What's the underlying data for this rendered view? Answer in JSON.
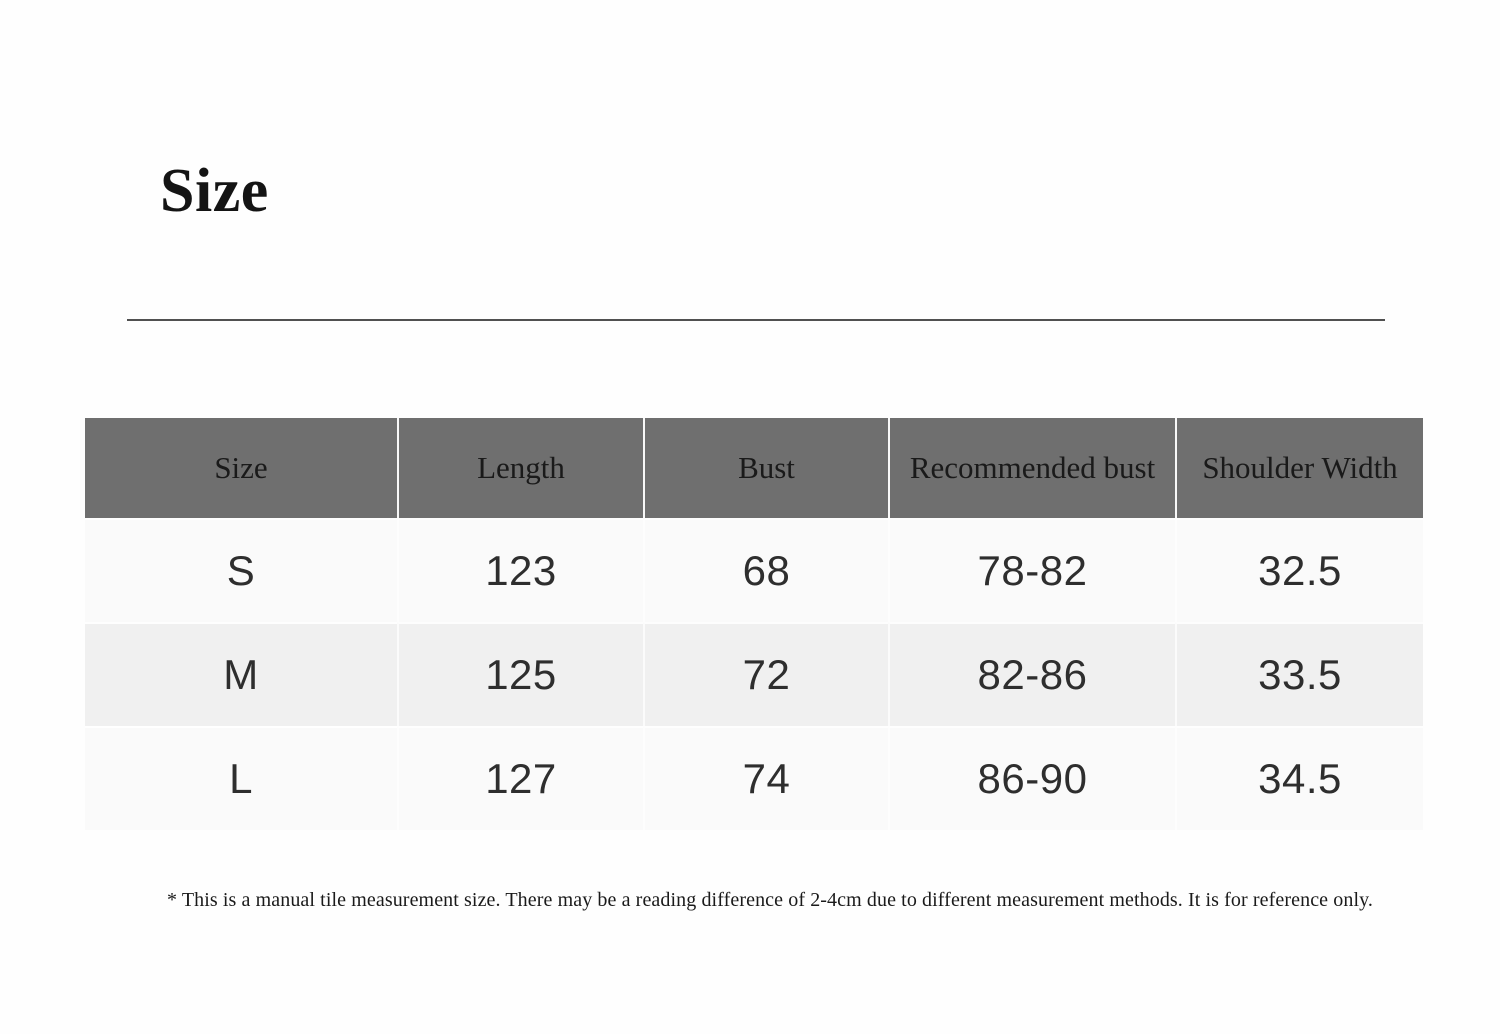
{
  "page": {
    "title": "Size",
    "footnote": "* This is a manual tile measurement size. There may be a reading difference of 2-4cm due to different measurement methods. It is for reference only."
  },
  "size_table": {
    "columns": [
      "Size",
      "Length",
      "Bust",
      "Recommended bust",
      "Shoulder Width"
    ],
    "rows": [
      [
        "S",
        "123",
        "68",
        "78-82",
        "32.5"
      ],
      [
        "M",
        "125",
        "72",
        "82-86",
        "33.5"
      ],
      [
        "L",
        "127",
        "74",
        "86-90",
        "34.5"
      ]
    ]
  },
  "colors": {
    "header_bg": "#6f6f6f",
    "header_text": "#1a1a1a",
    "row_light": "#fafafa",
    "row_alt": "#f0f0f0",
    "cell_text": "#2e2e2e",
    "divider": "#505050"
  }
}
